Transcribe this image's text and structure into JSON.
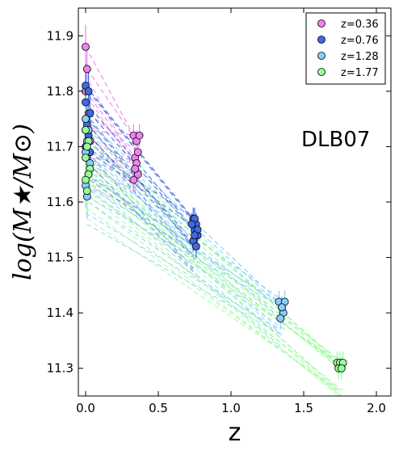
{
  "chart_data": {
    "type": "line",
    "xlabel": "z",
    "ylabel": "log(M★/M⊙)",
    "xlim": [
      -0.05,
      2.1
    ],
    "ylim": [
      11.25,
      11.95
    ],
    "xticks": [
      0.0,
      0.5,
      1.0,
      1.5,
      2.0
    ],
    "xtick_labels": [
      "0.0",
      "0.5",
      "1.0",
      "1.5",
      "2.0"
    ],
    "yticks": [
      11.3,
      11.4,
      11.5,
      11.6,
      11.7,
      11.8,
      11.9
    ],
    "ytick_labels": [
      "11.3",
      "11.4",
      "11.5",
      "11.6",
      "11.7",
      "11.8",
      "11.9"
    ],
    "grid": false,
    "legend_position": "top-right",
    "annotation": "DLB07",
    "series": [
      {
        "name": "z=0.36",
        "color": "#ee82ee",
        "z_start": 0.35,
        "points": [
          [
            0.0,
            11.88
          ],
          [
            0.01,
            11.84
          ],
          [
            0.0,
            11.8
          ],
          [
            0.02,
            11.76
          ],
          [
            0.0,
            11.73
          ],
          [
            0.03,
            11.71
          ],
          [
            0.01,
            11.68
          ]
        ],
        "progenitors": [
          [
            0.33,
            11.72
          ],
          [
            0.35,
            11.71
          ],
          [
            0.34,
            11.68
          ],
          [
            0.36,
            11.69
          ],
          [
            0.37,
            11.72
          ],
          [
            0.35,
            11.67
          ],
          [
            0.33,
            11.64
          ],
          [
            0.36,
            11.65
          ],
          [
            0.34,
            11.66
          ]
        ]
      },
      {
        "name": "z=0.76",
        "color": "#4169e1",
        "z_start": 0.75,
        "points": [
          [
            0.0,
            11.81
          ],
          [
            0.02,
            11.8
          ],
          [
            0.0,
            11.78
          ],
          [
            0.03,
            11.76
          ],
          [
            0.01,
            11.74
          ],
          [
            0.02,
            11.72
          ],
          [
            0.0,
            11.7
          ],
          [
            0.03,
            11.69
          ]
        ],
        "progenitors": [
          [
            0.74,
            11.57
          ],
          [
            0.76,
            11.56
          ],
          [
            0.75,
            11.55
          ],
          [
            0.77,
            11.54
          ],
          [
            0.74,
            11.53
          ],
          [
            0.76,
            11.52
          ],
          [
            0.75,
            11.57
          ],
          [
            0.77,
            11.55
          ],
          [
            0.73,
            11.56
          ],
          [
            0.75,
            11.54
          ]
        ]
      },
      {
        "name": "z=1.28",
        "color": "#87cefa",
        "z_start": 1.35,
        "points": [
          [
            0.0,
            11.75
          ],
          [
            0.02,
            11.73
          ],
          [
            0.01,
            11.71
          ],
          [
            0.0,
            11.69
          ],
          [
            0.03,
            11.67
          ],
          [
            0.02,
            11.65
          ],
          [
            0.0,
            11.63
          ],
          [
            0.01,
            11.61
          ]
        ],
        "progenitors": [
          [
            1.33,
            11.42
          ],
          [
            1.35,
            11.41
          ],
          [
            1.36,
            11.4
          ],
          [
            1.34,
            11.39
          ],
          [
            1.37,
            11.42
          ],
          [
            1.35,
            11.41
          ]
        ]
      },
      {
        "name": "z=1.77",
        "color": "#98fb98",
        "z_start": 1.75,
        "points": [
          [
            0.0,
            11.73
          ],
          [
            0.02,
            11.71
          ],
          [
            0.01,
            11.7
          ],
          [
            0.0,
            11.68
          ],
          [
            0.03,
            11.66
          ],
          [
            0.02,
            11.65
          ],
          [
            0.0,
            11.64
          ],
          [
            0.01,
            11.62
          ]
        ],
        "progenitors": [
          [
            1.73,
            11.31
          ],
          [
            1.75,
            11.31
          ],
          [
            1.76,
            11.3
          ],
          [
            1.74,
            11.3
          ],
          [
            1.77,
            11.31
          ],
          [
            1.76,
            11.3
          ]
        ]
      }
    ]
  }
}
